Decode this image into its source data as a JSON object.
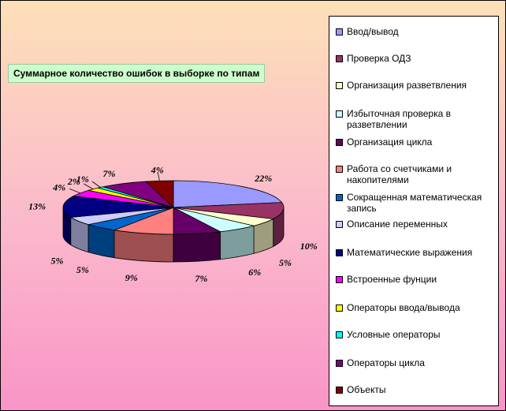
{
  "chart_data": {
    "type": "pie",
    "title": "Суммарное количество ошибок в выборке по типам",
    "legend_position": "right",
    "slices": [
      {
        "label": "Ввод/вывод",
        "value": 22,
        "value_label": "22%",
        "color": "#9999FF"
      },
      {
        "label": "Проверка ОДЗ",
        "value": 10,
        "value_label": "10%",
        "color": "#993366"
      },
      {
        "label": "Организация разветвления",
        "value": 5,
        "value_label": "5%",
        "color": "#FFFFCC"
      },
      {
        "label": "Избыточная проверка в разветвлении",
        "value": 6,
        "value_label": "6%",
        "color": "#CCFFFF"
      },
      {
        "label": "Организация цикла",
        "value": 7,
        "value_label": "7%",
        "color": "#660066"
      },
      {
        "label": "Работа со счетчиками и накопителями",
        "value": 9,
        "value_label": "9%",
        "color": "#FF8080"
      },
      {
        "label": "Сокращенная математическая запись",
        "value": 5,
        "value_label": "5%",
        "color": "#0066CC"
      },
      {
        "label": "Описание переменных",
        "value": 5,
        "value_label": "5%",
        "color": "#CCCCFF"
      },
      {
        "label": "Математические выражения",
        "value": 13,
        "value_label": "13%",
        "color": "#000080"
      },
      {
        "label": "Встроенные фунции",
        "value": 4,
        "value_label": "4%",
        "color": "#FF00FF"
      },
      {
        "label": "Операторы ввода/вывода",
        "value": 2,
        "value_label": "2%",
        "color": "#FFFF00"
      },
      {
        "label": "Условные операторы",
        "value": 1,
        "value_label": "1%",
        "color": "#00FFFF"
      },
      {
        "label": "Операторы цикла",
        "value": 7,
        "value_label": "7%",
        "color": "#800080"
      },
      {
        "label": "Объекты",
        "value": 4,
        "value_label": "4%",
        "color": "#800000"
      }
    ]
  }
}
